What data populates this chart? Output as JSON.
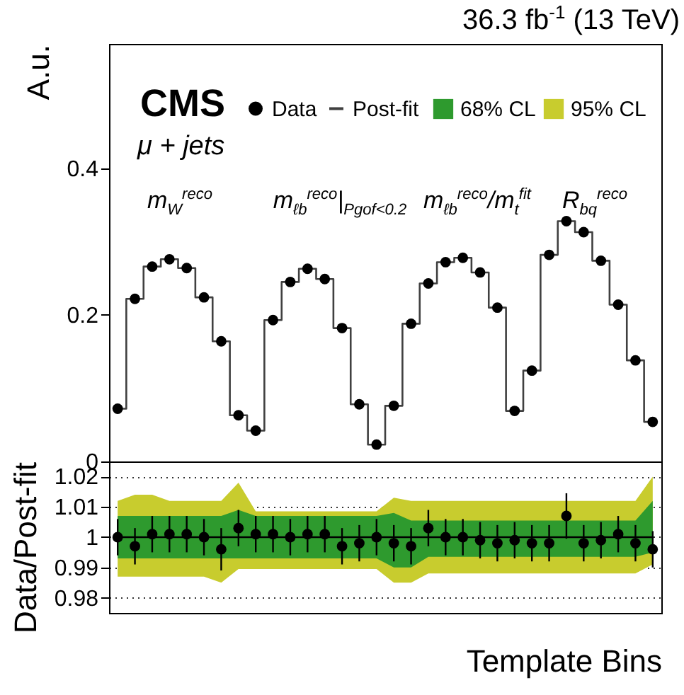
{
  "chart_data": [
    {
      "type": "step",
      "title": "36.3 fb$^{-1}$ (13 TeV)",
      "ylabel": "A.u.",
      "annotations": [
        "CMS",
        "μ + jets",
        "m$_{W}$$^{reco}$",
        "m$_{ℓb}$$^{reco}$|$_{Pgof<0.2}$",
        "m$_{ℓb}$$^{reco}$/m$_{t}$$^{fit}$",
        "R$_{bq}$$^{reco}$"
      ],
      "categories": [
        null,
        null,
        null,
        null,
        null,
        null,
        null,
        null,
        null,
        null,
        null,
        null,
        null,
        null,
        null,
        null,
        null,
        null,
        null,
        null,
        null,
        null,
        null,
        null,
        null,
        null,
        null,
        null,
        null,
        null,
        null,
        null
      ],
      "series": [
        {
          "name": "Data",
          "type": "scatter",
          "marker": "circle",
          "color": "#000000",
          "values": [
            0.072,
            0.222,
            0.266,
            0.276,
            0.264,
            0.224,
            0.164,
            0.063,
            0.042,
            0.193,
            0.245,
            0.263,
            0.249,
            0.182,
            0.078,
            0.023,
            0.076,
            0.188,
            0.243,
            0.272,
            0.278,
            0.258,
            0.21,
            0.069,
            0.124,
            0.282,
            0.328,
            0.313,
            0.274,
            0.214,
            0.138,
            0.054
          ]
        },
        {
          "name": "Post-fit",
          "color": "#404040",
          "values": [
            0.072,
            0.222,
            0.266,
            0.276,
            0.264,
            0.224,
            0.164,
            0.063,
            0.042,
            0.193,
            0.245,
            0.263,
            0.249,
            0.182,
            0.078,
            0.023,
            0.076,
            0.188,
            0.243,
            0.272,
            0.278,
            0.258,
            0.21,
            0.069,
            0.124,
            0.282,
            0.328,
            0.313,
            0.274,
            0.214,
            0.138,
            0.054
          ]
        }
      ],
      "ylim": [
        0,
        0.57
      ],
      "yticks": [
        0,
        0.2,
        0.4
      ],
      "tick_labels": "y",
      "legend": "top",
      "line_style": "solid"
    },
    {
      "type": "scatter",
      "xlabel": "Template Bins",
      "ylabel": "Data/Post-fit",
      "categories": [
        null,
        null,
        null,
        null,
        null,
        null,
        null,
        null,
        null,
        null,
        null,
        null,
        null,
        null,
        null,
        null,
        null,
        null,
        null,
        null,
        null,
        null,
        null,
        null,
        null,
        null,
        null,
        null,
        null,
        null,
        null,
        null
      ],
      "series": [
        {
          "name": "68% CL",
          "type": "line",
          "color": "#2e9a2e",
          "values": [
            null,
            null,
            null,
            null,
            null,
            null,
            null,
            null,
            null,
            null,
            null,
            null,
            null,
            null,
            null,
            null,
            null,
            null,
            null,
            null,
            null,
            null,
            null,
            null,
            null,
            null,
            null,
            null,
            null,
            null,
            null,
            null
          ],
          "lower": [
            0.993,
            0.993,
            0.993,
            0.993,
            0.993,
            0.993,
            0.993,
            0.993,
            0.993,
            0.993,
            0.993,
            0.993,
            0.993,
            0.993,
            0.993,
            0.993,
            0.99,
            0.99,
            0.9935,
            0.9935,
            0.9935,
            0.9935,
            0.9935,
            0.9935,
            0.9935,
            0.9935,
            0.9935,
            0.9935,
            0.9935,
            0.9935,
            0.9935,
            0.995
          ],
          "upper": [
            1.007,
            1.007,
            1.007,
            1.007,
            1.007,
            1.007,
            1.007,
            1.009,
            1.007,
            1.007,
            1.007,
            1.007,
            1.007,
            1.007,
            1.007,
            1.007,
            1.008,
            1.0055,
            1.0055,
            1.0055,
            1.0055,
            1.0055,
            1.0055,
            1.0055,
            1.0055,
            1.0055,
            1.0055,
            1.0055,
            1.0055,
            1.0055,
            1.0055,
            1.012
          ]
        },
        {
          "name": "95% CL",
          "type": "line",
          "color": "#c8cc2e",
          "values": [
            null,
            null,
            null,
            null,
            null,
            null,
            null,
            null,
            null,
            null,
            null,
            null,
            null,
            null,
            null,
            null,
            null,
            null,
            null,
            null,
            null,
            null,
            null,
            null,
            null,
            null,
            null,
            null,
            null,
            null,
            null,
            null
          ],
          "lower": [
            0.987,
            0.987,
            0.987,
            0.987,
            0.987,
            0.987,
            0.985,
            0.9895,
            0.9895,
            0.9895,
            0.9895,
            0.9895,
            0.9895,
            0.9895,
            0.9895,
            0.9895,
            0.985,
            0.985,
            0.988,
            0.988,
            0.988,
            0.988,
            0.988,
            0.988,
            0.988,
            0.988,
            0.988,
            0.988,
            0.988,
            0.988,
            0.988,
            0.991
          ],
          "upper": [
            1.012,
            1.014,
            1.014,
            1.012,
            1.012,
            1.012,
            1.012,
            1.018,
            1.0085,
            1.0085,
            1.0085,
            1.0085,
            1.0085,
            1.0085,
            1.0085,
            1.0085,
            1.013,
            1.012,
            1.012,
            1.012,
            1.012,
            1.012,
            1.012,
            1.012,
            1.012,
            1.012,
            1.012,
            1.012,
            1.012,
            1.012,
            1.012,
            1.02
          ]
        },
        {
          "type": "line",
          "color": "#000000",
          "values": [
            1,
            1,
            1,
            1,
            1,
            1,
            1,
            1,
            1,
            1,
            1,
            1,
            1,
            1,
            1,
            1,
            1,
            1,
            1,
            1,
            1,
            1,
            1,
            1,
            1,
            1,
            1,
            1,
            1,
            1,
            1,
            1
          ]
        },
        {
          "marker": "circle",
          "color": "#000000",
          "values": [
            1.0,
            0.997,
            1.001,
            1.001,
            1.001,
            1.0,
            0.996,
            1.003,
            1.001,
            1.001,
            1.0,
            1.001,
            1.001,
            0.997,
            0.998,
            1.0,
            0.998,
            0.997,
            1.003,
            1.0,
            1.0,
            0.999,
            0.998,
            0.999,
            0.998,
            0.998,
            1.007,
            0.998,
            0.999,
            1.001,
            0.998,
            0.996
          ],
          "errors": [
            0.006,
            0.006,
            0.006,
            0.006,
            0.006,
            0.006,
            0.007,
            0.006,
            0.006,
            0.006,
            0.006,
            0.006,
            0.006,
            0.006,
            0.006,
            0.006,
            0.006,
            0.006,
            0.006,
            0.006,
            0.006,
            0.006,
            0.006,
            0.006,
            0.006,
            0.006,
            0.0075,
            0.006,
            0.006,
            0.006,
            0.006,
            0.006
          ]
        }
      ],
      "ylim": [
        0.975,
        1.025
      ],
      "yticks": [
        {
          "value": 0.98,
          "label": "0.98"
        },
        {
          "value": 0.99,
          "label": "0.99"
        },
        1,
        {
          "value": 1.01,
          "label": "1.01"
        },
        {
          "value": 1.02,
          "label": "1.02"
        }
      ],
      "tick_labels": "y",
      "grid": "y",
      "legend": "top"
    }
  ]
}
